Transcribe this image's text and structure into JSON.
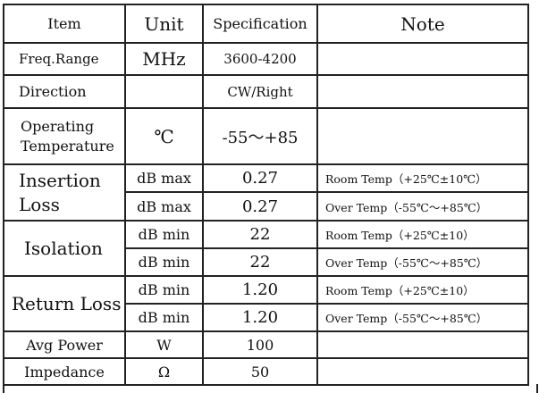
{
  "header": {
    "item": "Item",
    "unit": "Unit",
    "specification": "Specification",
    "note": "Note"
  },
  "rows": {
    "freq": {
      "item": "Freq.Range",
      "unit": "MHz",
      "spec": "3600-4200",
      "note": ""
    },
    "direction": {
      "item": "Direction",
      "unit": "",
      "spec": "CW/Right",
      "note": ""
    },
    "op_temp": {
      "item_line1": "Operating",
      "item_line2": "Temperature",
      "unit": "℃",
      "spec": "-55～+85",
      "note": ""
    },
    "insertion_loss": {
      "item_line1": "Insertion",
      "item_line2": "Loss",
      "sub": [
        {
          "unit": "dB max",
          "spec": "0.27",
          "note": "Room Temp（+25℃±10℃）"
        },
        {
          "unit": "dB max",
          "spec": "0.27",
          "note": "Over Temp（-55℃～+85℃）"
        }
      ]
    },
    "isolation": {
      "item": "Isolation",
      "sub": [
        {
          "unit": "dB min",
          "spec": "22",
          "note": "Room Temp（+25℃±10）"
        },
        {
          "unit": "dB min",
          "spec": "22",
          "note": "Over Temp（-55℃～+85℃）"
        }
      ]
    },
    "return_loss": {
      "item": "Return Loss",
      "sub": [
        {
          "unit": "dB min",
          "spec": "1.20",
          "note": "Room Temp（+25℃±10）"
        },
        {
          "unit": "dB min",
          "spec": "1.20",
          "note": "Over Temp（-55℃～+85℃）"
        }
      ]
    },
    "avg_power": {
      "item": "Avg Power",
      "unit": "W",
      "spec": "100",
      "note": ""
    },
    "impedance": {
      "item": "Impedance",
      "unit": "Ω",
      "spec": "50",
      "note": ""
    }
  }
}
